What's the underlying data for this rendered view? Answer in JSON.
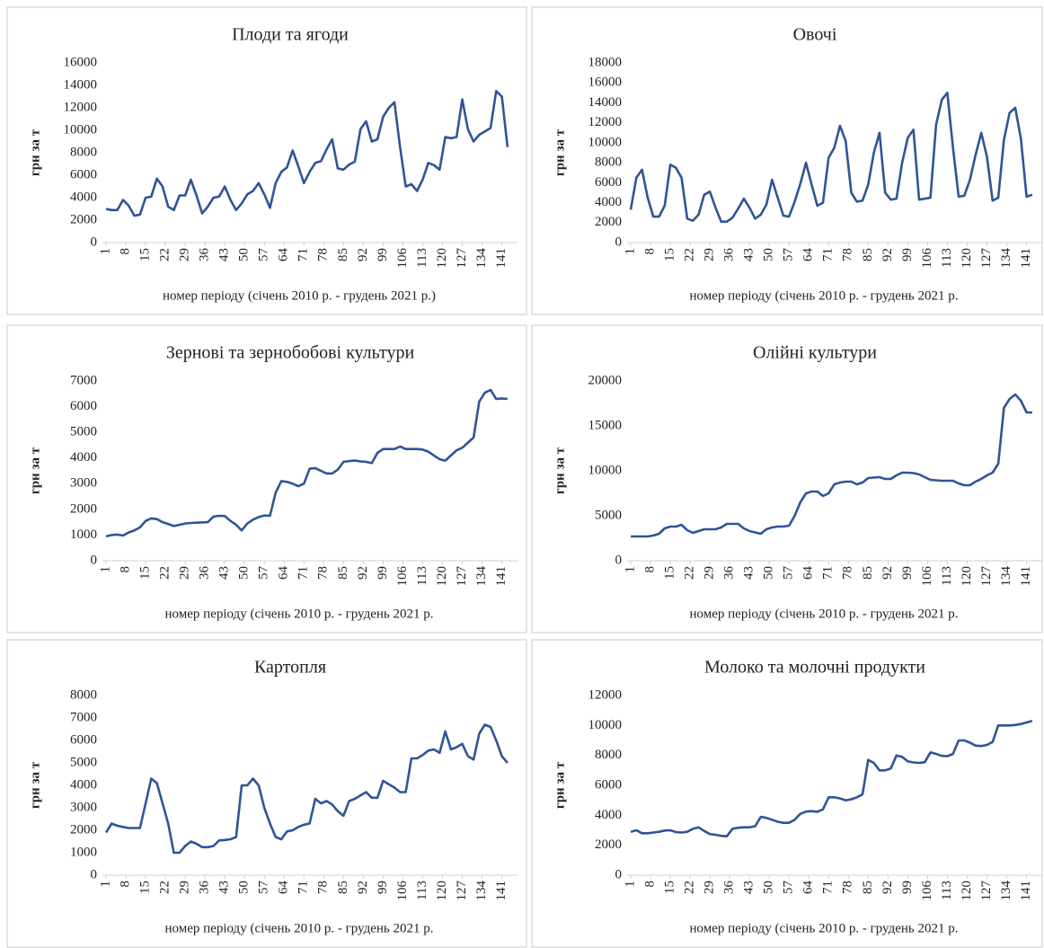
{
  "chart_data": [
    {
      "type": "line",
      "title": "Плоди та ягоди",
      "ylabel": "грн за т",
      "xlabel": "номер періоду (січень 2010 р. - грудень 2021 р.)",
      "color": "#2f5597",
      "x": [
        1,
        3,
        5,
        7,
        9,
        11,
        13,
        15,
        17,
        19,
        21,
        23,
        25,
        27,
        29,
        31,
        33,
        35,
        37,
        39,
        41,
        43,
        45,
        47,
        49,
        51,
        53,
        55,
        57,
        59,
        61,
        63,
        65,
        67,
        69,
        71,
        73,
        75,
        77,
        79,
        81,
        83,
        85,
        87,
        89,
        91,
        93,
        95,
        97,
        99,
        101,
        103,
        105,
        107,
        109,
        111,
        113,
        115,
        117,
        119,
        121,
        123,
        125,
        127,
        129,
        131,
        133,
        135,
        137,
        139,
        141,
        143
      ],
      "values": [
        3000,
        2900,
        2900,
        3800,
        3300,
        2400,
        2500,
        4000,
        4100,
        5700,
        5000,
        3200,
        2900,
        4200,
        4200,
        5600,
        4200,
        2600,
        3200,
        4000,
        4100,
        5000,
        3800,
        2900,
        3500,
        4300,
        4600,
        5300,
        4300,
        3100,
        5300,
        6300,
        6700,
        8200,
        6800,
        5300,
        6300,
        7100,
        7250,
        8300,
        9200,
        6600,
        6500,
        6950,
        7200,
        10100,
        10800,
        9000,
        9200,
        11200,
        12000,
        12500,
        8500,
        5000,
        5200,
        4600,
        5600,
        7100,
        6900,
        6500,
        9400,
        9300,
        9400,
        12750,
        10100,
        9000,
        9600,
        9900,
        10200,
        13500,
        13000,
        8500
      ],
      "xlim": [
        1,
        144
      ],
      "xticks": [
        1,
        8,
        15,
        22,
        29,
        36,
        43,
        50,
        57,
        64,
        71,
        78,
        85,
        92,
        99,
        106,
        113,
        120,
        127,
        134,
        141
      ],
      "ylim": [
        0,
        16000
      ],
      "yticks": [
        0,
        2000,
        4000,
        6000,
        8000,
        10000,
        12000,
        14000,
        16000
      ]
    },
    {
      "type": "line",
      "title": "Овочі",
      "ylabel": "грн за т",
      "xlabel": "номер періоду (січень 2010 р. - грудень 2021 р.",
      "color": "#2f5597",
      "x": [
        1,
        3,
        5,
        7,
        9,
        11,
        13,
        15,
        17,
        19,
        21,
        23,
        25,
        27,
        29,
        31,
        33,
        35,
        37,
        39,
        41,
        43,
        45,
        47,
        49,
        51,
        53,
        55,
        57,
        59,
        61,
        63,
        65,
        67,
        69,
        71,
        73,
        75,
        77,
        79,
        81,
        83,
        85,
        87,
        89,
        91,
        93,
        95,
        97,
        99,
        101,
        103,
        105,
        107,
        109,
        111,
        113,
        115,
        117,
        119,
        121,
        123,
        125,
        127,
        129,
        131,
        133,
        135,
        137,
        139,
        141,
        143
      ],
      "values": [
        3300,
        6500,
        7300,
        4500,
        2600,
        2600,
        3700,
        7800,
        7500,
        6500,
        2400,
        2200,
        2800,
        4800,
        5100,
        3500,
        2100,
        2100,
        2500,
        3400,
        4400,
        3500,
        2400,
        2800,
        3800,
        6300,
        4500,
        2700,
        2600,
        4100,
        5900,
        8000,
        5800,
        3700,
        4000,
        8500,
        9500,
        11700,
        10200,
        5000,
        4100,
        4200,
        5800,
        9000,
        11000,
        5000,
        4300,
        4400,
        8000,
        10500,
        11300,
        4300,
        4400,
        4500,
        11800,
        14300,
        15000,
        9500,
        4600,
        4700,
        6300,
        8800,
        11000,
        8600,
        4200,
        4500,
        10300,
        13000,
        13500,
        10400,
        4600,
        4800
      ],
      "xlim": [
        1,
        144
      ],
      "xticks": [
        1,
        8,
        15,
        22,
        29,
        36,
        43,
        50,
        57,
        64,
        71,
        78,
        85,
        92,
        99,
        106,
        113,
        120,
        127,
        134,
        141
      ],
      "ylim": [
        0,
        18000
      ],
      "yticks": [
        0,
        2000,
        4000,
        6000,
        8000,
        10000,
        12000,
        14000,
        16000,
        18000
      ]
    },
    {
      "type": "line",
      "title": "Зернові та зернобобові культури",
      "ylabel": "грн за т",
      "xlabel": "номер періоду (січень 2010 р. - грудень 2021 р.",
      "color": "#2f5597",
      "x": [
        1,
        3,
        5,
        7,
        9,
        11,
        13,
        15,
        17,
        19,
        21,
        23,
        25,
        27,
        29,
        31,
        33,
        35,
        37,
        39,
        41,
        43,
        45,
        47,
        49,
        51,
        53,
        55,
        57,
        59,
        61,
        63,
        65,
        67,
        69,
        71,
        73,
        75,
        77,
        79,
        81,
        83,
        85,
        87,
        89,
        91,
        93,
        95,
        97,
        99,
        101,
        103,
        105,
        107,
        109,
        111,
        113,
        115,
        117,
        119,
        121,
        123,
        125,
        127,
        129,
        131,
        133,
        135,
        137,
        139,
        141,
        143
      ],
      "values": [
        950,
        1000,
        1020,
        980,
        1100,
        1180,
        1300,
        1550,
        1650,
        1620,
        1500,
        1430,
        1350,
        1400,
        1450,
        1470,
        1480,
        1490,
        1500,
        1720,
        1750,
        1740,
        1550,
        1400,
        1180,
        1450,
        1600,
        1700,
        1760,
        1750,
        2650,
        3100,
        3070,
        3000,
        2900,
        3000,
        3580,
        3610,
        3500,
        3400,
        3400,
        3550,
        3850,
        3880,
        3900,
        3870,
        3850,
        3800,
        4200,
        4350,
        4350,
        4350,
        4450,
        4350,
        4350,
        4350,
        4330,
        4250,
        4100,
        3950,
        3900,
        4100,
        4300,
        4400,
        4600,
        4800,
        6200,
        6550,
        6650,
        6300,
        6320,
        6300
      ],
      "xlim": [
        1,
        144
      ],
      "xticks": [
        1,
        8,
        15,
        22,
        29,
        36,
        43,
        50,
        57,
        64,
        71,
        78,
        85,
        92,
        99,
        106,
        113,
        120,
        127,
        134,
        141
      ],
      "ylim": [
        0,
        7000
      ],
      "yticks": [
        0,
        1000,
        2000,
        3000,
        4000,
        5000,
        6000,
        7000
      ]
    },
    {
      "type": "line",
      "title": "Олійні культури",
      "ylabel": "грн за т",
      "xlabel": "номер періоду (січень 2010 р. - грудень 2021 р.",
      "color": "#2f5597",
      "x": [
        1,
        3,
        5,
        7,
        9,
        11,
        13,
        15,
        17,
        19,
        21,
        23,
        25,
        27,
        29,
        31,
        33,
        35,
        37,
        39,
        41,
        43,
        45,
        47,
        49,
        51,
        53,
        55,
        57,
        59,
        61,
        63,
        65,
        67,
        69,
        71,
        73,
        75,
        77,
        79,
        81,
        83,
        85,
        87,
        89,
        91,
        93,
        95,
        97,
        99,
        101,
        103,
        105,
        107,
        109,
        111,
        113,
        115,
        117,
        119,
        121,
        123,
        125,
        127,
        129,
        131,
        133,
        135,
        137,
        139,
        141,
        143
      ],
      "values": [
        2700,
        2700,
        2700,
        2700,
        2800,
        3000,
        3600,
        3800,
        3800,
        4000,
        3400,
        3100,
        3300,
        3500,
        3500,
        3500,
        3700,
        4100,
        4100,
        4100,
        3600,
        3300,
        3150,
        3000,
        3500,
        3700,
        3800,
        3800,
        3900,
        5000,
        6500,
        7500,
        7700,
        7700,
        7200,
        7500,
        8500,
        8700,
        8800,
        8800,
        8500,
        8700,
        9200,
        9250,
        9300,
        9100,
        9100,
        9500,
        9800,
        9800,
        9750,
        9600,
        9300,
        9000,
        8950,
        8900,
        8900,
        8900,
        8600,
        8400,
        8400,
        8800,
        9100,
        9500,
        9800,
        10800,
        17000,
        18000,
        18500,
        17800,
        16500,
        16500
      ],
      "xlim": [
        1,
        144
      ],
      "xticks": [
        1,
        8,
        15,
        22,
        29,
        36,
        43,
        50,
        57,
        64,
        71,
        78,
        85,
        92,
        99,
        106,
        113,
        120,
        127,
        134,
        141
      ],
      "ylim": [
        0,
        20000
      ],
      "yticks": [
        0,
        5000,
        10000,
        15000,
        20000
      ]
    },
    {
      "type": "line",
      "title": "Картопля",
      "ylabel": "грн за т",
      "xlabel": "номер періоду (січень 2010 р. - грудень 2021 р.",
      "color": "#2f5597",
      "x": [
        1,
        3,
        5,
        7,
        9,
        11,
        13,
        15,
        17,
        19,
        21,
        23,
        25,
        27,
        29,
        31,
        33,
        35,
        37,
        39,
        41,
        43,
        45,
        47,
        49,
        51,
        53,
        55,
        57,
        59,
        61,
        63,
        65,
        67,
        69,
        71,
        73,
        75,
        77,
        79,
        81,
        83,
        85,
        87,
        89,
        91,
        93,
        95,
        97,
        99,
        101,
        103,
        105,
        107,
        109,
        111,
        113,
        115,
        117,
        119,
        121,
        123,
        125,
        127,
        129,
        131,
        133,
        135,
        137,
        139,
        141,
        143
      ],
      "values": [
        1900,
        2300,
        2200,
        2150,
        2100,
        2100,
        2100,
        3200,
        4300,
        4100,
        3200,
        2300,
        1000,
        1000,
        1300,
        1500,
        1400,
        1250,
        1250,
        1300,
        1550,
        1570,
        1600,
        1700,
        4000,
        4000,
        4300,
        4000,
        3000,
        2300,
        1700,
        1600,
        1950,
        2000,
        2150,
        2250,
        2300,
        3400,
        3200,
        3300,
        3150,
        2850,
        2650,
        3300,
        3400,
        3550,
        3700,
        3450,
        3450,
        4200,
        4050,
        3900,
        3700,
        3700,
        5200,
        5200,
        5350,
        5550,
        5600,
        5450,
        6400,
        5600,
        5700,
        5850,
        5300,
        5150,
        6300,
        6700,
        6600,
        6000,
        5300,
        5000
      ],
      "xlim": [
        1,
        144
      ],
      "xticks": [
        1,
        8,
        15,
        22,
        29,
        36,
        43,
        50,
        57,
        64,
        71,
        78,
        85,
        92,
        99,
        106,
        113,
        120,
        127,
        134,
        141
      ],
      "ylim": [
        0,
        8000
      ],
      "yticks": [
        0,
        1000,
        2000,
        3000,
        4000,
        5000,
        6000,
        7000,
        8000
      ]
    },
    {
      "type": "line",
      "title": "Молоко та молочні продукти",
      "ylabel": "грн за т",
      "xlabel": "номер періоду (січень 2010 р. - грудень 2021 р.",
      "color": "#2f5597",
      "x": [
        1,
        3,
        5,
        7,
        9,
        11,
        13,
        15,
        17,
        19,
        21,
        23,
        25,
        27,
        29,
        31,
        33,
        35,
        37,
        39,
        41,
        43,
        45,
        47,
        49,
        51,
        53,
        55,
        57,
        59,
        61,
        63,
        65,
        67,
        69,
        71,
        73,
        75,
        77,
        79,
        81,
        83,
        85,
        87,
        89,
        91,
        93,
        95,
        97,
        99,
        101,
        103,
        105,
        107,
        109,
        111,
        113,
        115,
        117,
        119,
        121,
        123,
        125,
        127,
        129,
        131,
        133,
        135,
        137,
        139,
        141,
        143
      ],
      "values": [
        2900,
        3000,
        2800,
        2800,
        2850,
        2900,
        2980,
        3000,
        2880,
        2850,
        2900,
        3100,
        3200,
        2950,
        2750,
        2700,
        2630,
        2600,
        3100,
        3170,
        3200,
        3200,
        3270,
        3900,
        3830,
        3700,
        3570,
        3500,
        3500,
        3700,
        4100,
        4250,
        4280,
        4230,
        4400,
        5200,
        5200,
        5130,
        5000,
        5070,
        5200,
        5400,
        7700,
        7500,
        7000,
        7000,
        7130,
        8000,
        7900,
        7600,
        7530,
        7500,
        7550,
        8200,
        8100,
        7970,
        7950,
        8100,
        9000,
        9000,
        8850,
        8650,
        8630,
        8700,
        8900,
        10000,
        10000,
        10000,
        10030,
        10100,
        10200,
        10300
      ],
      "xlim": [
        1,
        144
      ],
      "xticks": [
        1,
        8,
        15,
        22,
        29,
        36,
        43,
        50,
        57,
        64,
        71,
        78,
        85,
        92,
        99,
        106,
        113,
        120,
        127,
        134,
        141
      ],
      "ylim": [
        0,
        12000
      ],
      "yticks": [
        0,
        2000,
        4000,
        6000,
        8000,
        10000,
        12000
      ]
    }
  ]
}
